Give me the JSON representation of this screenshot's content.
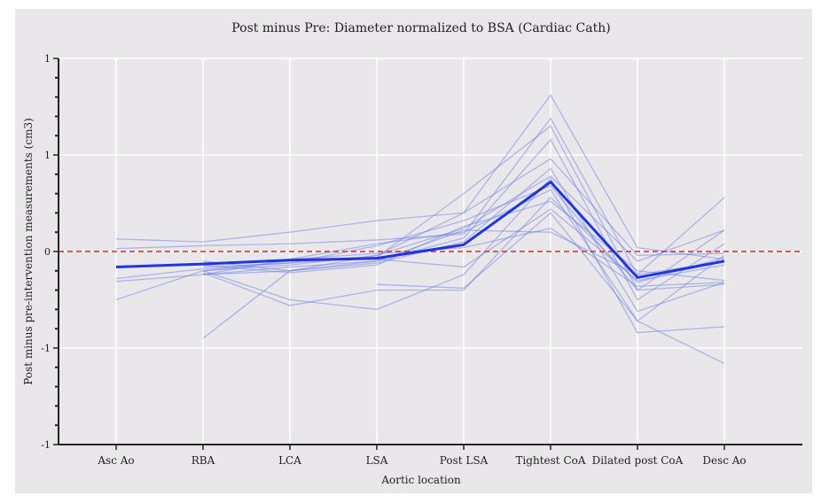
{
  "chart_data": {
    "type": "line",
    "title": "Post minus Pre: Diameter normalized to BSA (Cardiac Cath)",
    "xlabel": "Aortic location",
    "ylabel": "Post minus pre-intervention measurements (cm3)",
    "categories": [
      "Asc Ao",
      "RBA",
      "LCA",
      "LSA",
      "Post LSA",
      "Tightest CoA",
      "Dilated post CoA",
      "Desc Ao"
    ],
    "ylim": [
      -1,
      1
    ],
    "yticks": [
      1.0,
      0.5,
      0,
      -0.5,
      -1.0
    ],
    "ytick_labels": [
      "1",
      "1",
      "0",
      "-1",
      "-1"
    ],
    "grid": true,
    "reference_line": {
      "y": 0,
      "color": "#e0202a",
      "style": "dashed"
    },
    "colors": {
      "individual": "#6f7fe8",
      "mean": "#1f35e0"
    },
    "mean_series": [
      -0.08,
      -0.065,
      -0.045,
      -0.035,
      0.035,
      0.36,
      -0.135,
      -0.05
    ],
    "series": [
      {
        "values": [
          0.065,
          0.05,
          0.1,
          0.16,
          0.2,
          0.81,
          0.02,
          -0.04
        ]
      },
      {
        "values": [
          0.015,
          0.03,
          0.04,
          0.06,
          0.09,
          0.69,
          -0.12,
          0.28
        ]
      },
      {
        "values": [
          -0.14,
          -0.09,
          -0.06,
          -0.03,
          0.3,
          0.65,
          -0.2,
          0.11
        ]
      },
      {
        "values": [
          -0.155,
          -0.12,
          -0.1,
          -0.05,
          0.07,
          0.58,
          -0.25,
          0.04
        ]
      },
      {
        "values": [
          -0.25,
          -0.1,
          -0.07,
          -0.02,
          0.2,
          0.48,
          -0.02,
          -0.01
        ]
      },
      {
        "values": [
          null,
          -0.45,
          -0.1,
          -0.06,
          0.05,
          0.43,
          -0.31,
          -0.16
        ]
      },
      {
        "values": [
          null,
          -0.05,
          -0.1,
          -0.02,
          0.12,
          0.39,
          -0.05,
          0.11
        ]
      },
      {
        "values": [
          null,
          -0.1,
          -0.25,
          -0.3,
          -0.12,
          0.38,
          -0.42,
          -0.39
        ]
      },
      {
        "values": [
          null,
          -0.08,
          -0.06,
          0.03,
          0.16,
          0.34,
          -0.2,
          -0.17
        ]
      },
      {
        "values": [
          null,
          -0.12,
          -0.04,
          0.04,
          0.1,
          0.32,
          -0.36,
          -0.58
        ]
      },
      {
        "values": [
          null,
          -0.11,
          -0.28,
          -0.2,
          -0.2,
          0.28,
          -0.16,
          -0.03
        ]
      },
      {
        "values": [
          null,
          -0.07,
          -0.11,
          -0.07,
          0.13,
          0.26,
          -0.1,
          -0.15
        ]
      },
      {
        "values": [
          null,
          -0.1,
          -0.05,
          -0.04,
          -0.08,
          0.22,
          -0.15,
          -0.07
        ]
      },
      {
        "values": [
          null,
          null,
          null,
          -0.17,
          -0.19,
          0.2,
          -0.36,
          -0.02
        ]
      },
      {
        "values": [
          null,
          -0.06,
          -0.04,
          -0.01,
          0.02,
          0.12,
          -0.18,
          -0.16
        ]
      },
      {
        "values": [
          null,
          -0.12,
          -0.08,
          -0.05,
          0.11,
          0.1,
          -0.12,
          -0.05
        ]
      }
    ]
  }
}
